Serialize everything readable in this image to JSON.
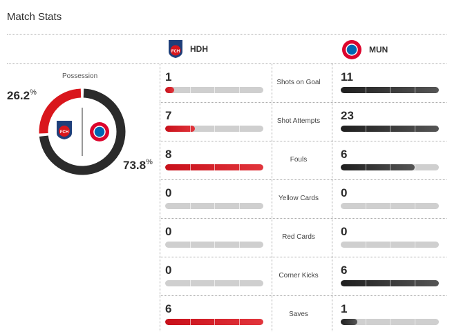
{
  "title": "Match Stats",
  "teams": {
    "home": {
      "abbr": "HDH",
      "logo": "FCH",
      "color": "#d9161c"
    },
    "away": {
      "abbr": "MUN",
      "logo": "FC Bayern München",
      "color": "#2b2b2b"
    }
  },
  "possession": {
    "label": "Possession",
    "home_pct": 26.2,
    "away_pct": 73.8,
    "home_text": "26.2",
    "away_text": "73.8",
    "unit": "%"
  },
  "stats": [
    {
      "label": "Shots on Goal",
      "home": 1,
      "away": 11
    },
    {
      "label": "Shot Attempts",
      "home": 7,
      "away": 23
    },
    {
      "label": "Fouls",
      "home": 8,
      "away": 6
    },
    {
      "label": "Yellow Cards",
      "home": 0,
      "away": 0
    },
    {
      "label": "Red Cards",
      "home": 0,
      "away": 0
    },
    {
      "label": "Corner Kicks",
      "home": 0,
      "away": 6
    },
    {
      "label": "Saves",
      "home": 6,
      "away": 1
    }
  ]
}
